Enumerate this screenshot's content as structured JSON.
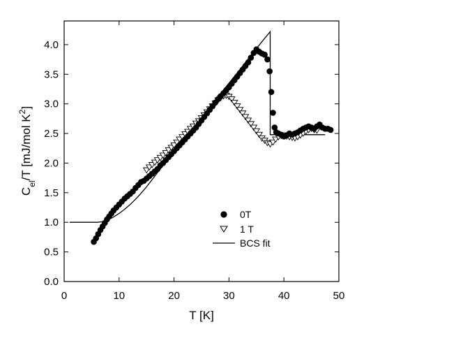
{
  "chart_data": {
    "type": "scatter",
    "xlabel": "T [K]",
    "ylabel": {
      "base": "C",
      "sub": "el",
      "mid": "/T [mJ/mol K",
      "sup": "2",
      "end": "]"
    },
    "xlim": [
      0,
      50
    ],
    "ylim": [
      0,
      4.4
    ],
    "xticks": [
      "0",
      "10",
      "20",
      "30",
      "40",
      "50"
    ],
    "yticks": [
      "0.0",
      "0.5",
      "1.0",
      "1.5",
      "2.0",
      "2.5",
      "3.0",
      "3.5",
      "4.0"
    ],
    "grid": false,
    "legend_position": "lower-center",
    "series": [
      {
        "name": "0T",
        "marker": "filled-circle",
        "color": "#000000",
        "x": [
          5.4,
          5.8,
          6.2,
          6.6,
          7.0,
          7.4,
          7.8,
          8.2,
          8.6,
          9.0,
          9.5,
          10.0,
          10.5,
          11.0,
          11.5,
          12.0,
          12.5,
          13.0,
          13.5,
          14.0,
          14.5,
          15.0,
          15.5,
          16.0,
          16.5,
          17.0,
          17.5,
          18.0,
          18.5,
          19.0,
          19.5,
          20.0,
          20.5,
          21.0,
          21.5,
          22.0,
          22.5,
          23.0,
          23.5,
          24.0,
          24.5,
          25.0,
          25.5,
          26.0,
          26.5,
          27.0,
          27.5,
          28.0,
          28.5,
          29.0,
          29.5,
          30.0,
          30.5,
          31.0,
          31.5,
          32.0,
          32.5,
          33.0,
          33.5,
          34.0,
          34.5,
          35.0,
          35.5,
          36.0,
          36.5,
          37.0,
          37.4,
          37.7,
          38.0,
          38.3,
          38.6,
          39.0,
          39.5,
          40.0,
          40.5,
          41.0,
          41.5,
          42.0,
          42.5,
          43.0,
          43.5,
          44.0,
          44.5,
          45.0,
          45.5,
          46.0,
          46.5,
          47.0,
          47.5,
          48.0,
          48.5
        ],
        "y": [
          0.67,
          0.73,
          0.8,
          0.87,
          0.93,
          0.99,
          1.05,
          1.1,
          1.15,
          1.2,
          1.25,
          1.3,
          1.35,
          1.4,
          1.44,
          1.48,
          1.52,
          1.58,
          1.63,
          1.68,
          1.7,
          1.74,
          1.78,
          1.82,
          1.86,
          1.9,
          1.96,
          2.0,
          2.05,
          2.1,
          2.15,
          2.2,
          2.25,
          2.3,
          2.35,
          2.4,
          2.45,
          2.5,
          2.55,
          2.6,
          2.66,
          2.72,
          2.78,
          2.84,
          2.9,
          2.96,
          3.02,
          3.08,
          3.13,
          3.18,
          3.23,
          3.28,
          3.34,
          3.4,
          3.46,
          3.52,
          3.58,
          3.64,
          3.7,
          3.78,
          3.86,
          3.92,
          3.88,
          3.85,
          3.83,
          3.75,
          3.55,
          3.2,
          2.85,
          2.6,
          2.52,
          2.5,
          2.48,
          2.45,
          2.47,
          2.5,
          2.48,
          2.5,
          2.52,
          2.55,
          2.58,
          2.6,
          2.62,
          2.6,
          2.58,
          2.62,
          2.65,
          2.6,
          2.58,
          2.58,
          2.56
        ]
      },
      {
        "name": "1 T",
        "marker": "open-triangle-down",
        "color": "#000000",
        "x": [
          15.0,
          15.5,
          16.0,
          16.5,
          17.0,
          17.5,
          18.0,
          18.5,
          19.0,
          19.5,
          20.0,
          20.5,
          21.0,
          21.5,
          22.0,
          22.5,
          23.0,
          23.5,
          24.0,
          24.5,
          25.0,
          25.5,
          26.0,
          26.5,
          27.0,
          27.5,
          28.0,
          28.5,
          29.0,
          29.5,
          30.0,
          30.5,
          31.0,
          31.5,
          32.0,
          32.5,
          33.0,
          33.5,
          34.0,
          34.5,
          35.0,
          35.5,
          36.0,
          36.5,
          37.0,
          37.5,
          38.0,
          38.5,
          39.0,
          39.5,
          40.0,
          40.5,
          41.0,
          41.5,
          42.0,
          42.5,
          43.0,
          43.5,
          44.0,
          44.5,
          45.0,
          45.5,
          46.0
        ],
        "y": [
          1.88,
          1.93,
          1.97,
          2.01,
          2.05,
          2.09,
          2.13,
          2.17,
          2.22,
          2.26,
          2.3,
          2.35,
          2.4,
          2.44,
          2.49,
          2.53,
          2.58,
          2.62,
          2.67,
          2.71,
          2.76,
          2.81,
          2.86,
          2.91,
          2.96,
          3.01,
          3.06,
          3.1,
          3.13,
          3.14,
          3.12,
          3.08,
          3.02,
          2.96,
          2.9,
          2.84,
          2.78,
          2.72,
          2.66,
          2.6,
          2.54,
          2.48,
          2.42,
          2.38,
          2.34,
          2.32,
          2.35,
          2.4,
          2.44,
          2.46,
          2.47,
          2.45,
          2.44,
          2.43,
          2.42,
          2.44,
          2.47,
          2.5,
          2.53,
          2.56,
          2.58,
          2.56,
          2.55
        ]
      },
      {
        "name": "BCS fit",
        "marker": "line",
        "color": "#000000",
        "x": [
          1.0,
          2.0,
          3.0,
          4.0,
          5.0,
          6.0,
          7.0,
          8.0,
          9.0,
          10.0,
          11.0,
          12.0,
          13.0,
          14.0,
          15.0,
          16.0,
          18.0,
          20.0,
          22.0,
          24.0,
          26.0,
          28.0,
          30.0,
          32.0,
          34.0,
          36.0,
          37.5,
          37.5,
          38.0,
          40.0,
          42.0,
          44.0,
          46.0,
          47.5
        ],
        "y": [
          1.0,
          1.0,
          1.0,
          1.0,
          1.0,
          1.0,
          1.01,
          1.04,
          1.09,
          1.15,
          1.22,
          1.3,
          1.39,
          1.49,
          1.6,
          1.72,
          1.96,
          2.2,
          2.43,
          2.66,
          2.89,
          3.12,
          3.35,
          3.58,
          3.82,
          4.05,
          4.22,
          2.48,
          2.48,
          2.48,
          2.48,
          2.48,
          2.48,
          2.48
        ]
      }
    ]
  }
}
